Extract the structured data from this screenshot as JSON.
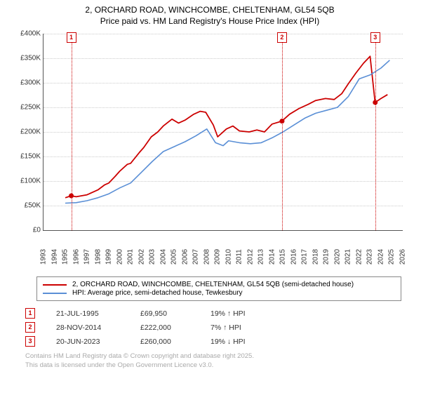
{
  "title_line1": "2, ORCHARD ROAD, WINCHCOMBE, CHELTENHAM, GL54 5QB",
  "title_line2": "Price paid vs. HM Land Registry's House Price Index (HPI)",
  "chart": {
    "type": "line",
    "background_color": "#ffffff",
    "grid_color": "#cccccc",
    "axis_color": "#555555",
    "x": {
      "min": 1993,
      "max": 2026,
      "ticks": [
        1993,
        1994,
        1995,
        1996,
        1997,
        1998,
        1999,
        2000,
        2001,
        2002,
        2003,
        2004,
        2005,
        2006,
        2007,
        2008,
        2009,
        2010,
        2011,
        2012,
        2013,
        2014,
        2015,
        2016,
        2017,
        2018,
        2019,
        2020,
        2021,
        2022,
        2023,
        2024,
        2025,
        2026
      ]
    },
    "y": {
      "min": 0,
      "max": 400000,
      "ticks": [
        0,
        50000,
        100000,
        150000,
        200000,
        250000,
        300000,
        350000,
        400000
      ],
      "tick_labels": [
        "£0",
        "£50K",
        "£100K",
        "£150K",
        "£200K",
        "£250K",
        "£300K",
        "£350K",
        "£400K"
      ]
    },
    "series": [
      {
        "name": "property",
        "color": "#cc0000",
        "width": 1.8,
        "points": [
          [
            1995.0,
            66000
          ],
          [
            1995.55,
            69950
          ],
          [
            1996,
            68000
          ],
          [
            1997,
            72000
          ],
          [
            1998,
            82000
          ],
          [
            1998.6,
            92000
          ],
          [
            1999,
            96000
          ],
          [
            1999.6,
            110000
          ],
          [
            2000,
            120000
          ],
          [
            2000.7,
            134000
          ],
          [
            2001,
            136000
          ],
          [
            2001.8,
            158000
          ],
          [
            2002.2,
            168000
          ],
          [
            2002.9,
            190000
          ],
          [
            2003.5,
            200000
          ],
          [
            2004,
            212000
          ],
          [
            2004.8,
            226000
          ],
          [
            2005.4,
            218000
          ],
          [
            2006,
            224000
          ],
          [
            2006.8,
            236000
          ],
          [
            2007.4,
            242000
          ],
          [
            2007.9,
            240000
          ],
          [
            2008.6,
            214000
          ],
          [
            2009,
            190000
          ],
          [
            2009.8,
            206000
          ],
          [
            2010.4,
            212000
          ],
          [
            2011,
            202000
          ],
          [
            2011.9,
            200000
          ],
          [
            2012.6,
            204000
          ],
          [
            2013.3,
            200000
          ],
          [
            2014,
            216000
          ],
          [
            2014.9,
            222000
          ],
          [
            2015.6,
            236000
          ],
          [
            2016.5,
            248000
          ],
          [
            2017.3,
            256000
          ],
          [
            2018,
            264000
          ],
          [
            2018.9,
            268000
          ],
          [
            2019.7,
            266000
          ],
          [
            2020.4,
            278000
          ],
          [
            2021,
            298000
          ],
          [
            2021.7,
            320000
          ],
          [
            2022.4,
            340000
          ],
          [
            2023,
            354000
          ],
          [
            2023.46,
            260000
          ],
          [
            2024,
            268000
          ],
          [
            2024.6,
            276000
          ]
        ]
      },
      {
        "name": "hpi",
        "color": "#5a8fd6",
        "width": 1.6,
        "points": [
          [
            1995,
            55000
          ],
          [
            1996,
            56000
          ],
          [
            1997,
            60000
          ],
          [
            1998,
            66000
          ],
          [
            1999,
            74000
          ],
          [
            2000,
            86000
          ],
          [
            2001,
            96000
          ],
          [
            2002,
            118000
          ],
          [
            2003,
            140000
          ],
          [
            2004,
            160000
          ],
          [
            2005,
            170000
          ],
          [
            2006,
            180000
          ],
          [
            2007,
            192000
          ],
          [
            2008,
            206000
          ],
          [
            2008.8,
            178000
          ],
          [
            2009.5,
            172000
          ],
          [
            2010,
            182000
          ],
          [
            2011,
            178000
          ],
          [
            2012,
            176000
          ],
          [
            2013,
            178000
          ],
          [
            2014,
            188000
          ],
          [
            2015,
            200000
          ],
          [
            2016,
            214000
          ],
          [
            2017,
            228000
          ],
          [
            2018,
            238000
          ],
          [
            2019,
            244000
          ],
          [
            2020,
            250000
          ],
          [
            2021,
            272000
          ],
          [
            2022,
            308000
          ],
          [
            2023,
            316000
          ],
          [
            2024,
            330000
          ],
          [
            2024.8,
            346000
          ]
        ]
      }
    ],
    "markers": [
      {
        "label": "1",
        "x": 1995.55,
        "box_top": true
      },
      {
        "label": "2",
        "x": 2014.91,
        "box_top": true
      },
      {
        "label": "3",
        "x": 2023.47,
        "box_top": true
      }
    ],
    "sale_points": [
      {
        "x": 1995.55,
        "y": 69950
      },
      {
        "x": 2014.91,
        "y": 222000
      },
      {
        "x": 2023.47,
        "y": 260000
      }
    ]
  },
  "legend": [
    {
      "color": "#cc0000",
      "label": "2, ORCHARD ROAD, WINCHCOMBE, CHELTENHAM, GL54 5QB (semi-detached house)"
    },
    {
      "color": "#5a8fd6",
      "label": "HPI: Average price, semi-detached house, Tewkesbury"
    }
  ],
  "events": [
    {
      "num": "1",
      "date": "21-JUL-1995",
      "price": "£69,950",
      "rel": "19% ↑ HPI"
    },
    {
      "num": "2",
      "date": "28-NOV-2014",
      "price": "£222,000",
      "rel": "7% ↑ HPI"
    },
    {
      "num": "3",
      "date": "20-JUN-2023",
      "price": "£260,000",
      "rel": "19% ↓ HPI"
    }
  ],
  "foot1": "Contains HM Land Registry data © Crown copyright and database right 2025.",
  "foot2": "This data is licensed under the Open Government Licence v3.0."
}
